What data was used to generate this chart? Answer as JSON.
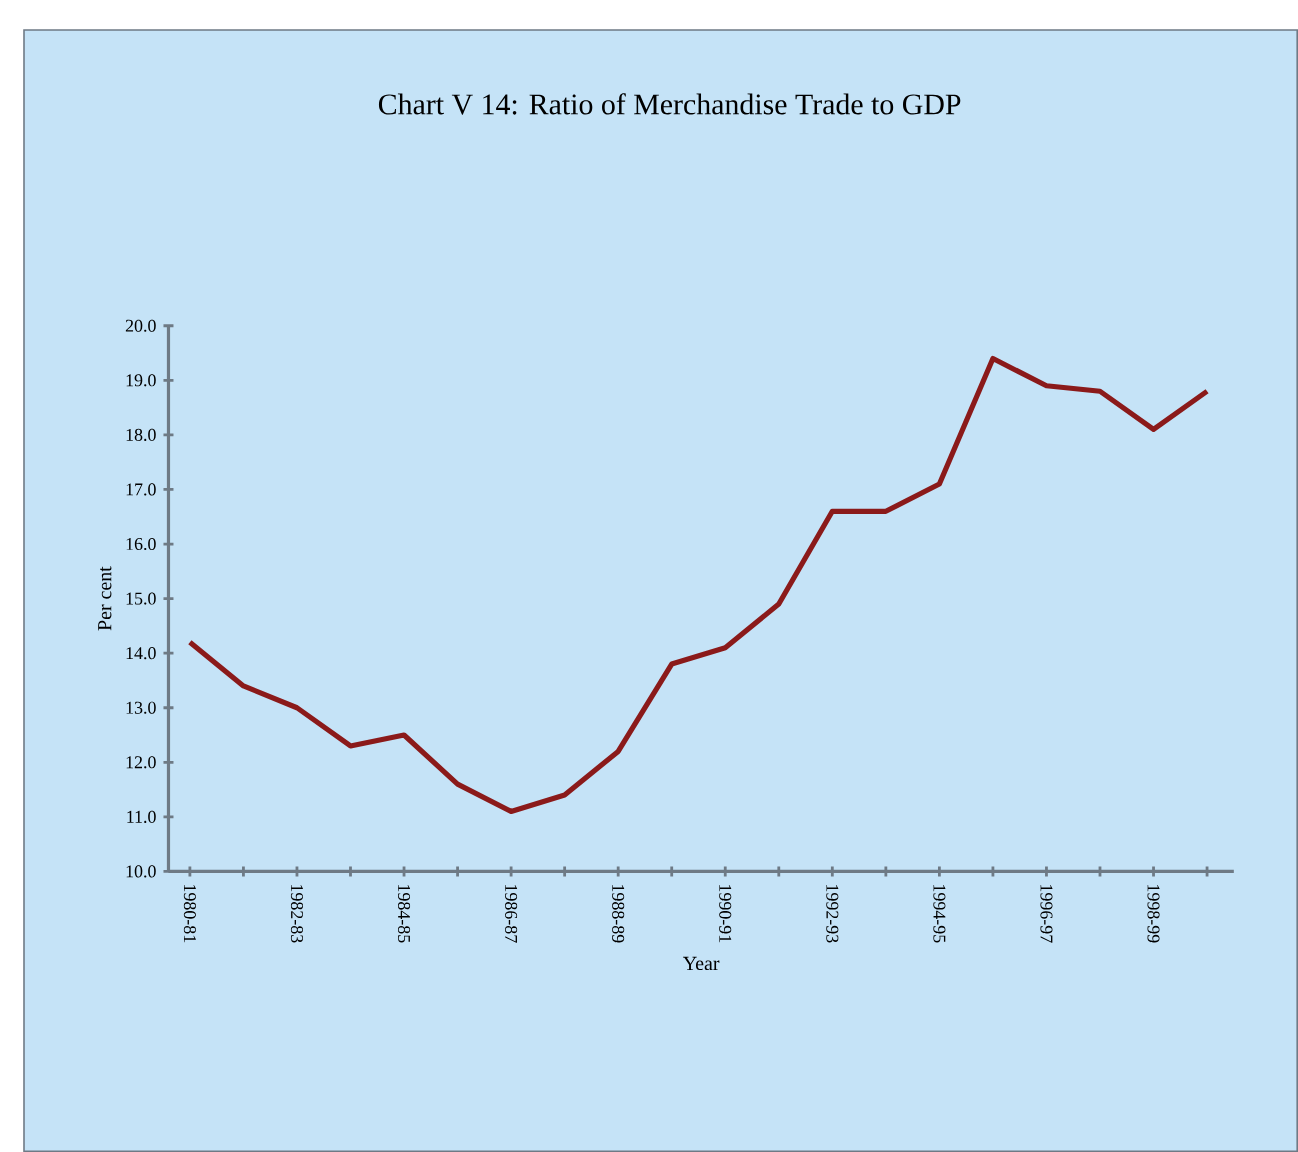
{
  "chart_data": {
    "type": "line",
    "title": "Chart V 14: Ratio of Merchandise Trade to GDP",
    "xlabel": "Year",
    "ylabel": "Per cent",
    "categories": [
      "1980-81",
      null,
      "1982-83",
      null,
      "1984-85",
      null,
      "1986-87",
      null,
      "1988-89",
      null,
      "1990-91",
      null,
      "1992-93",
      null,
      "1994-95",
      null,
      "1996-97",
      null,
      "1998-99",
      null
    ],
    "series": [
      {
        "color": "#8b1a1a",
        "values": [
          14.2,
          13.4,
          13.0,
          12.3,
          12.5,
          11.6,
          11.1,
          11.4,
          12.2,
          13.8,
          14.1,
          14.9,
          16.6,
          16.6,
          17.1,
          19.4,
          18.9,
          18.8,
          18.1,
          18.8
        ]
      }
    ],
    "ylim": [
      10,
      20
    ],
    "yticks": [
      {
        "value": 10,
        "label": "10.0"
      },
      {
        "value": 11,
        "label": "11.0"
      },
      {
        "value": 12,
        "label": "12.0"
      },
      {
        "value": 13,
        "label": "13.0"
      },
      {
        "value": 14,
        "label": "14.0"
      },
      {
        "value": 15,
        "label": "15.0"
      },
      {
        "value": 16,
        "label": "16.0"
      },
      {
        "value": 17,
        "label": "17.0"
      },
      {
        "value": 18,
        "label": "18.0"
      },
      {
        "value": 19,
        "label": "19.0"
      },
      {
        "value": 20,
        "label": "20.0"
      }
    ],
    "grid": false,
    "marker": "none",
    "line_style": "solid"
  }
}
